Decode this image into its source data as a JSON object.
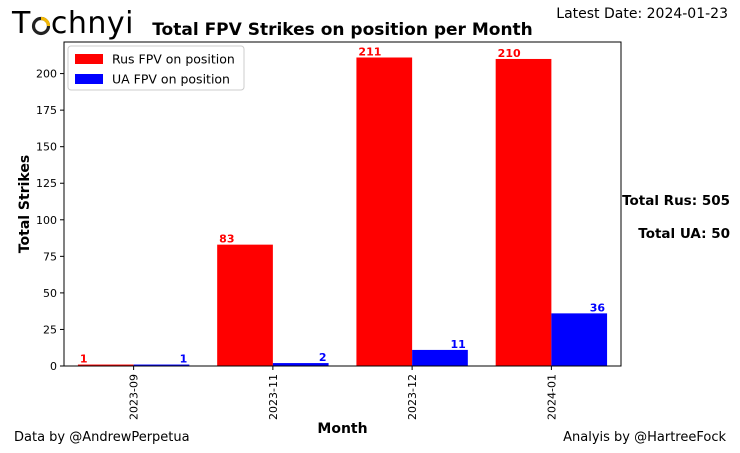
{
  "logo": {
    "prefix": "T",
    "suffix": "chnyi"
  },
  "latest_date": "Latest Date: 2024-01-23",
  "totals": {
    "rus": "Total Rus: 505",
    "ua": "Total UA: 50"
  },
  "credits": {
    "left": "Data by @AndrewPerpetua",
    "right": "Analyis by @HartreeFock"
  },
  "colors": {
    "rus": "#ff0000",
    "ua": "#0000ff",
    "logo_accent": "#f2b705"
  },
  "chart_data": {
    "type": "bar",
    "title": "Total FPV Strikes on position per Month",
    "xlabel": "Month",
    "ylabel": "Total Strikes",
    "ylim": [
      0,
      221.6
    ],
    "yticks": [
      0,
      25,
      50,
      75,
      100,
      125,
      150,
      175,
      200
    ],
    "categories": [
      "2023-09",
      "2023-11",
      "2023-12",
      "2024-01"
    ],
    "series": [
      {
        "name": "Rus FPV on position",
        "values": [
          1,
          83,
          211,
          210
        ]
      },
      {
        "name": "UA FPV on position",
        "values": [
          1,
          2,
          11,
          36
        ]
      }
    ],
    "legend": "top-left",
    "grid": false
  }
}
